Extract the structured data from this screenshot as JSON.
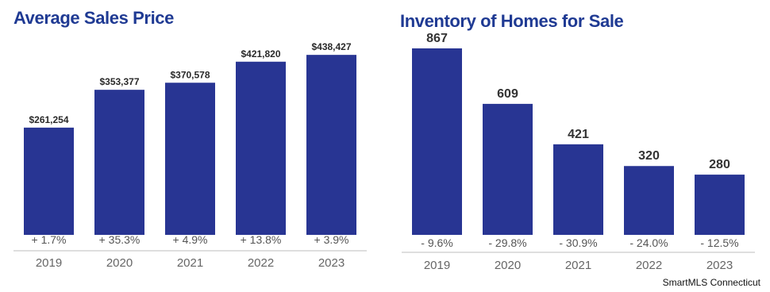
{
  "colors": {
    "bar": "#283593",
    "title": "#1f3a93",
    "axis": "#bdbdbd"
  },
  "source": "SmartMLS Connecticut",
  "chart_data": [
    {
      "type": "bar",
      "title": "Average Sales Price",
      "categories": [
        "2019",
        "2020",
        "2021",
        "2022",
        "2023"
      ],
      "values": [
        261254,
        353377,
        370578,
        421820,
        438427
      ],
      "value_labels": [
        "$261,254",
        "$353,377",
        "$370,578",
        "$421,820",
        "$438,427"
      ],
      "changes": [
        "+ 1.7%",
        "+ 35.3%",
        "+ 4.9%",
        "+ 13.8%",
        "+ 3.9%"
      ],
      "ylim": [
        0,
        460000
      ],
      "grid": false,
      "xlabel": "",
      "ylabel": ""
    },
    {
      "type": "bar",
      "title": "Inventory of Homes for Sale",
      "categories": [
        "2019",
        "2020",
        "2021",
        "2022",
        "2023"
      ],
      "values": [
        867,
        609,
        421,
        320,
        280
      ],
      "value_labels": [
        "867",
        "609",
        "421",
        "320",
        "280"
      ],
      "changes": [
        "- 9.6%",
        "- 29.8%",
        "- 30.9%",
        "- 24.0%",
        "- 12.5%"
      ],
      "ylim": [
        0,
        900
      ],
      "grid": false,
      "xlabel": "",
      "ylabel": ""
    }
  ]
}
